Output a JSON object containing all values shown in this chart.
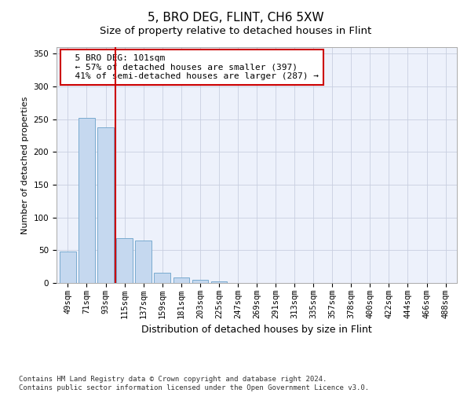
{
  "title": "5, BRO DEG, FLINT, CH6 5XW",
  "subtitle": "Size of property relative to detached houses in Flint",
  "xlabel": "Distribution of detached houses by size in Flint",
  "ylabel": "Number of detached properties",
  "categories": [
    "49sqm",
    "71sqm",
    "93sqm",
    "115sqm",
    "137sqm",
    "159sqm",
    "181sqm",
    "203sqm",
    "225sqm",
    "247sqm",
    "269sqm",
    "291sqm",
    "313sqm",
    "335sqm",
    "357sqm",
    "378sqm",
    "400sqm",
    "422sqm",
    "444sqm",
    "466sqm",
    "488sqm"
  ],
  "values": [
    48,
    252,
    238,
    68,
    65,
    16,
    8,
    5,
    3,
    0,
    0,
    0,
    0,
    0,
    0,
    0,
    0,
    0,
    0,
    0,
    0
  ],
  "bar_color": "#c5d8ef",
  "bar_edge_color": "#7aabcf",
  "vline_x": 2.5,
  "vline_color": "#cc0000",
  "annotation_text": "  5 BRO DEG: 101sqm\n  ← 57% of detached houses are smaller (397)\n  41% of semi-detached houses are larger (287) →",
  "annotation_box_color": "#ffffff",
  "annotation_box_edge": "#cc0000",
  "ylim": [
    0,
    360
  ],
  "yticks": [
    0,
    50,
    100,
    150,
    200,
    250,
    300,
    350
  ],
  "footer": "Contains HM Land Registry data © Crown copyright and database right 2024.\nContains public sector information licensed under the Open Government Licence v3.0.",
  "background_color": "#edf1fb",
  "title_fontsize": 11,
  "subtitle_fontsize": 9.5,
  "tick_fontsize": 7.5,
  "ylabel_fontsize": 8,
  "xlabel_fontsize": 9,
  "footer_fontsize": 6.5
}
